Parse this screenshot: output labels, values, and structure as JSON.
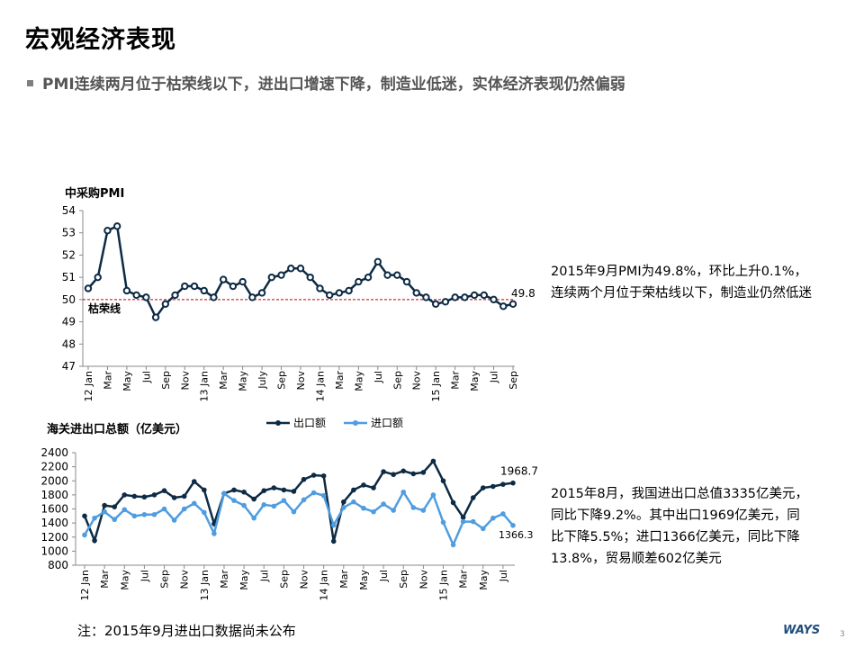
{
  "page": {
    "title": "宏观经济表现",
    "subtitle": "PMI连续两月位于枯荣线以下，进出口增速下降，制造业低迷，实体经济表现仍然偏弱",
    "note": "注：2015年9月进出口数据尚未公布",
    "logo": "WAYS",
    "page_number": "3",
    "pmi_text": "2015年9月PMI为49.8%，环比上升0.1%，连续两个月位于荣枯线以下，制造业仍然低迷",
    "trade_text": "2015年8月，我国进出口总值3335亿美元，同比下降9.2%。其中出口1969亿美元，同比下降5.5%；进口1366亿美元，同比下降13.8%，贸易顺差602亿美元"
  },
  "chart_data": [
    {
      "type": "line",
      "title": "中采购PMI",
      "x_tick_labels": [
        "12 Jan",
        "Mar",
        "May",
        "Jul",
        "Sep",
        "Nov",
        "13 Jan",
        "Mar",
        "May",
        "July",
        "Sep",
        "Nov",
        "14 Jan",
        "Mar",
        "May",
        "Jul",
        "Sep",
        "Nov",
        "15 Jan",
        "Mar",
        "May",
        "Jul",
        "Sep"
      ],
      "ylim": [
        47,
        54
      ],
      "yticks": [
        "47",
        "48",
        "49",
        "50",
        "51",
        "52",
        "53",
        "54"
      ],
      "series": [
        {
          "values": [
            50.5,
            51.0,
            53.1,
            53.3,
            50.4,
            50.2,
            50.1,
            49.2,
            49.8,
            50.2,
            50.6,
            50.6,
            50.4,
            50.1,
            50.9,
            50.6,
            50.8,
            50.1,
            50.3,
            51.0,
            51.1,
            51.4,
            51.4,
            51.0,
            50.5,
            50.2,
            50.3,
            50.4,
            50.8,
            51.0,
            51.7,
            51.1,
            51.1,
            50.8,
            50.3,
            50.1,
            49.8,
            49.9,
            50.1,
            50.1,
            50.2,
            50.2,
            50.0,
            49.7,
            49.8
          ]
        }
      ],
      "reference_line": {
        "value": 50,
        "label": "枯荣线"
      },
      "last_value_label": "49.8",
      "grid": false
    },
    {
      "type": "line",
      "title": "海关进出口总额（亿美元）",
      "x_tick_labels": [
        "12 Jan",
        "Mar",
        "May",
        "Jul",
        "Sep",
        "Nov",
        "13 Jan",
        "Mar",
        "May",
        "Jul",
        "Sep",
        "Nov",
        "14 Jan",
        "Mar",
        "May",
        "Jul",
        "Sep",
        "Nov",
        "15 Jan",
        "Mar",
        "May",
        "Jul"
      ],
      "ylim": [
        800,
        2400
      ],
      "yticks": [
        "800",
        "1000",
        "1200",
        "1400",
        "1600",
        "1800",
        "2000",
        "2200",
        "2400"
      ],
      "legend_position": "top",
      "series": [
        {
          "name": "出口额",
          "color": "#0d2b45",
          "values": [
            1500,
            1150,
            1650,
            1630,
            1800,
            1780,
            1770,
            1800,
            1860,
            1760,
            1780,
            1990,
            1870,
            1390,
            1820,
            1870,
            1840,
            1740,
            1860,
            1900,
            1870,
            1850,
            2020,
            2080,
            2070,
            1140,
            1700,
            1870,
            1940,
            1900,
            2130,
            2090,
            2140,
            2100,
            2120,
            2280,
            2000,
            1690,
            1480,
            1760,
            1900,
            1920,
            1950,
            1969
          ]
        },
        {
          "name": "进口额",
          "color": "#4f9de0",
          "values": [
            1230,
            1470,
            1560,
            1450,
            1590,
            1500,
            1520,
            1520,
            1600,
            1440,
            1600,
            1680,
            1550,
            1250,
            1820,
            1720,
            1650,
            1470,
            1660,
            1640,
            1720,
            1560,
            1730,
            1830,
            1790,
            1370,
            1620,
            1700,
            1610,
            1560,
            1670,
            1580,
            1840,
            1620,
            1580,
            1800,
            1410,
            1090,
            1420,
            1420,
            1320,
            1470,
            1530,
            1366
          ]
        }
      ],
      "last_value_labels": [
        "1968.7",
        "1366.3"
      ],
      "grid": false
    }
  ]
}
